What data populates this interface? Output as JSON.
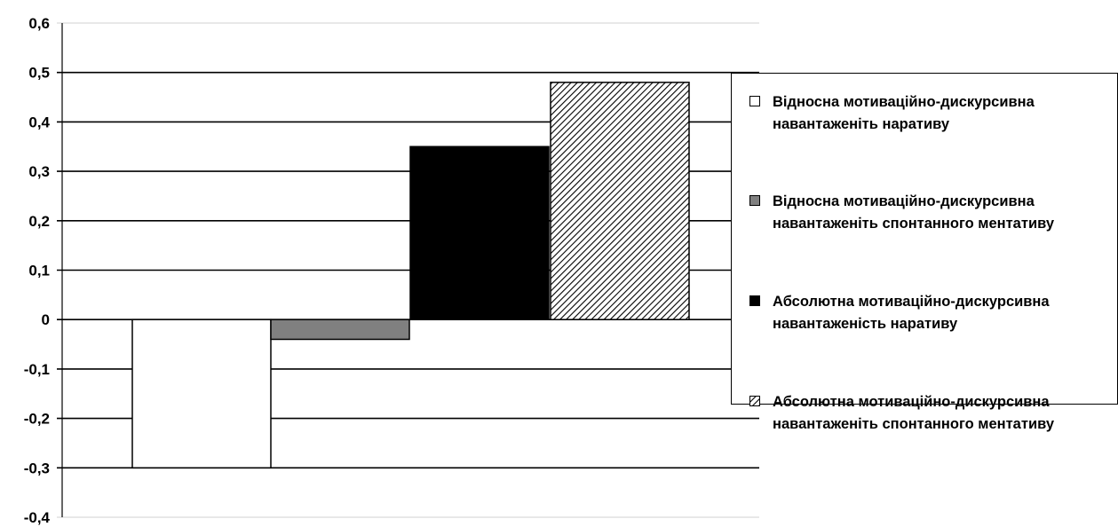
{
  "chart_data": {
    "type": "bar",
    "title": "",
    "xlabel": "",
    "ylabel": "",
    "ylim": [
      -0.4,
      0.6
    ],
    "yticks": [
      "0,6",
      "0,5",
      "0,4",
      "0,3",
      "0,2",
      "0,1",
      "0",
      "-0,1",
      "-0,2",
      "-0,3",
      "-0,4"
    ],
    "grid": true,
    "legend_position": "right",
    "series": [
      {
        "name": "Відносна мотиваційно-дискурсивна навантаженіть наративу",
        "value": -0.3,
        "fill": "white",
        "color": "#ffffff"
      },
      {
        "name": "Відносна мотиваційно-дискурсивна навантаженіть спонтанного ментативу",
        "value": -0.04,
        "fill": "solid",
        "color": "#808080"
      },
      {
        "name": "Абсолютна мотиваційно-дискурсивна навантаженість наративу",
        "value": 0.35,
        "fill": "solid",
        "color": "#000000"
      },
      {
        "name": "Абсолютна мотиваційно-дискурсивна навантаженіть спонтанного ментативу",
        "value": 0.48,
        "fill": "hatch",
        "color": "#000000"
      }
    ]
  },
  "legend": {
    "items": [
      {
        "line1": "Відносна мотиваційно-дискурсивна",
        "line2": "навантаженіть наративу"
      },
      {
        "line1": "Відносна мотиваційно-дискурсивна",
        "line2": "навантаженіть спонтанного ментативу"
      },
      {
        "line1": "Абсолютна мотиваційно-дискурсивна",
        "line2": "навантаженість наративу"
      },
      {
        "line1": "Абсолютна мотиваційно-дискурсивна",
        "line2": "навантаженіть спонтанного ментативу"
      }
    ]
  }
}
